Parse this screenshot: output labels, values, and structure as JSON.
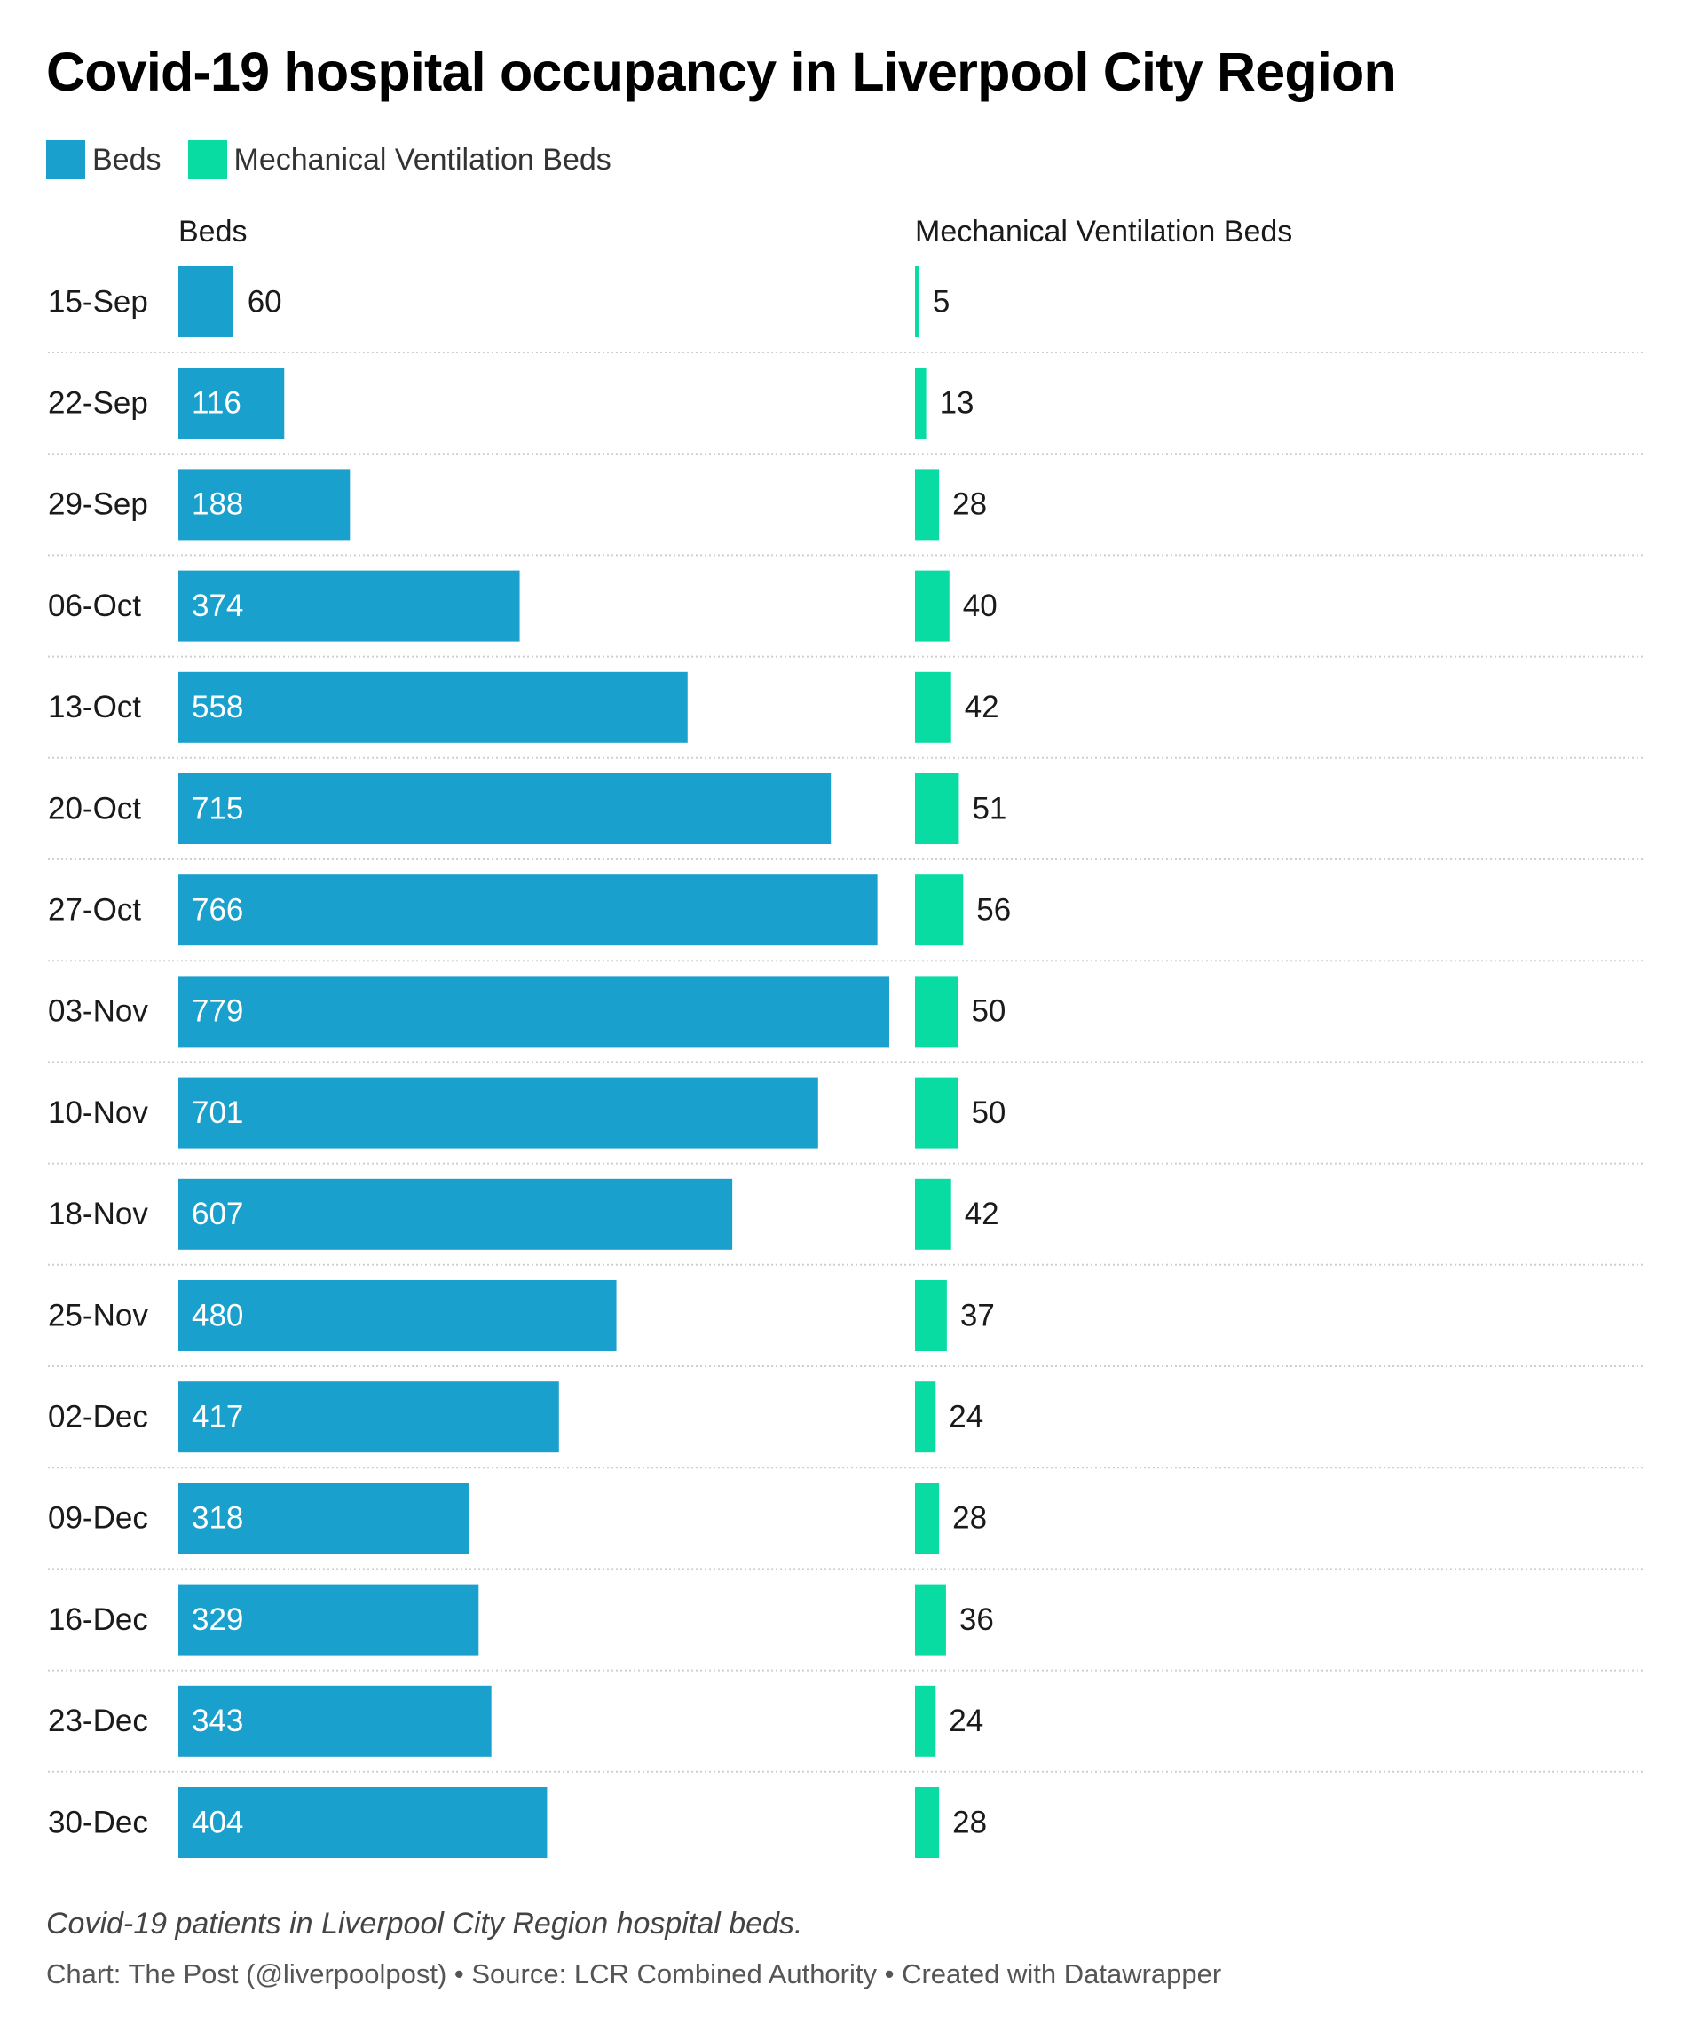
{
  "title": "Covid-19 hospital occupancy in Liverpool City Region",
  "colors": {
    "beds": "#1aa0cc",
    "ventilation": "#08dca2",
    "separator": "#cfcfcf",
    "text": "#1a1a1a",
    "label_inside": "#ffffff"
  },
  "legend": [
    {
      "label": "Beds",
      "color": "#1aa0cc"
    },
    {
      "label": "Mechanical Ventilation Beds",
      "color": "#08dca2"
    }
  ],
  "chart_data": {
    "type": "bar",
    "categories": [
      "15-Sep",
      "22-Sep",
      "29-Sep",
      "06-Oct",
      "13-Oct",
      "20-Oct",
      "27-Oct",
      "03-Nov",
      "10-Nov",
      "18-Nov",
      "25-Nov",
      "02-Dec",
      "09-Dec",
      "16-Dec",
      "23-Dec",
      "30-Dec"
    ],
    "series": [
      {
        "name": "Beds",
        "values": [
          60,
          116,
          188,
          374,
          558,
          715,
          766,
          779,
          701,
          607,
          480,
          417,
          318,
          329,
          343,
          404
        ]
      },
      {
        "name": "Mechanical Ventilation Beds",
        "values": [
          5,
          13,
          28,
          40,
          42,
          51,
          56,
          50,
          50,
          42,
          37,
          24,
          28,
          36,
          24,
          28
        ]
      }
    ],
    "orientation": "horizontal",
    "layout": "split-bars"
  },
  "footer": {
    "description": "Covid-19 patients in Liverpool City Region hospital beds.",
    "credits": "Chart: The Post (@liverpoolpost) • Source: LCR Combined Authority • Created with Datawrapper"
  }
}
